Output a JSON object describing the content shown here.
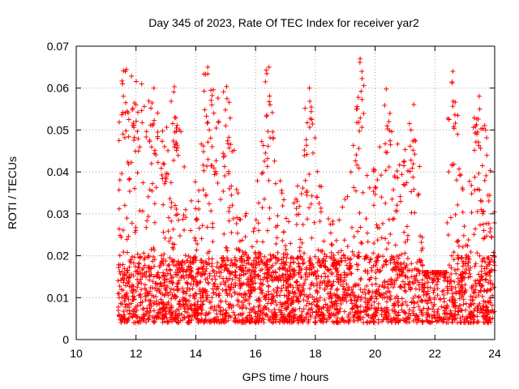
{
  "chart_data": {
    "type": "scatter",
    "title": "Day 345 of 2023, Rate Of TEC Index for receiver yar2",
    "xlabel": "GPS time / hours",
    "ylabel": "ROTI / TECUs",
    "xlim": [
      10,
      24
    ],
    "ylim": [
      0,
      0.07
    ],
    "x_ticks": [
      10,
      12,
      14,
      16,
      18,
      20,
      22,
      24
    ],
    "x_tick_labels": [
      "10",
      "12",
      "14",
      "16",
      "18",
      "20",
      "22",
      "24"
    ],
    "y_ticks": [
      0,
      0.01,
      0.02,
      0.03,
      0.04,
      0.05,
      0.06,
      0.07
    ],
    "y_tick_labels": [
      "0",
      "0.01",
      "0.02",
      "0.03",
      "0.04",
      "0.05",
      "0.06",
      "0.07"
    ],
    "grid": true,
    "marker": "+",
    "series": [
      {
        "name": "ROTI",
        "color": "#ff0000",
        "x_start": 11.4,
        "x_end": 24.0,
        "baseline_range": [
          0.004,
          0.02
        ],
        "representative_peaks": [
          {
            "x": 11.55,
            "y": 0.061
          },
          {
            "x": 12.0,
            "y": 0.056
          },
          {
            "x": 12.6,
            "y": 0.06
          },
          {
            "x": 13.3,
            "y": 0.053
          },
          {
            "x": 14.4,
            "y": 0.065
          },
          {
            "x": 15.0,
            "y": 0.051
          },
          {
            "x": 16.45,
            "y": 0.065
          },
          {
            "x": 17.8,
            "y": 0.06
          },
          {
            "x": 19.5,
            "y": 0.067
          },
          {
            "x": 20.4,
            "y": 0.051
          },
          {
            "x": 21.2,
            "y": 0.05
          },
          {
            "x": 22.6,
            "y": 0.064
          },
          {
            "x": 23.5,
            "y": 0.055
          }
        ]
      }
    ]
  }
}
